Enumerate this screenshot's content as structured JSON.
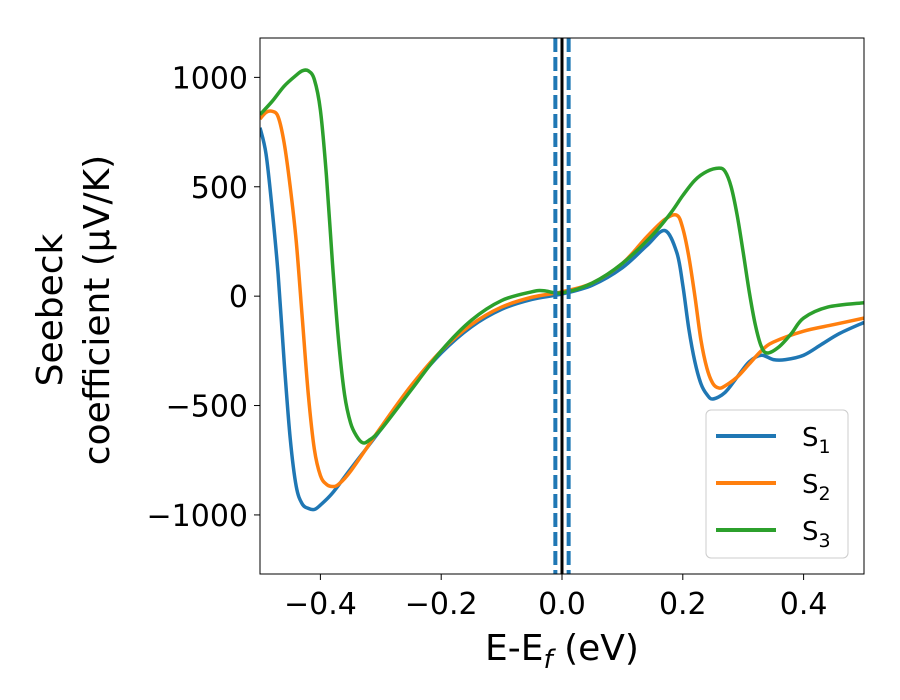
{
  "chart_data": {
    "type": "line",
    "xlabel": "E-E_f (eV)",
    "xlabel_parts": {
      "main": "E-E",
      "sub": "f",
      "tail": " (eV)"
    },
    "ylabel_line1": "Seebeck",
    "ylabel_line2": "coefficient  (μV/K)",
    "xlim": [
      -0.5,
      0.5
    ],
    "ylim": [
      -1270,
      1180
    ],
    "xticks": [
      -0.4,
      -0.2,
      0.0,
      0.2,
      0.4
    ],
    "xtick_labels": [
      "−0.4",
      "−0.2",
      "0.0",
      "0.2",
      "0.4"
    ],
    "yticks": [
      1000,
      500,
      0,
      -500,
      -1000
    ],
    "ytick_labels": [
      "1000",
      "500",
      "0",
      "−500",
      "−1000"
    ],
    "grid": false,
    "legend_position": "bottom-right",
    "vlines": [
      {
        "x": 0.0,
        "color": "#000000",
        "style": "solid"
      },
      {
        "x": -0.011,
        "color": "#1f77b4",
        "style": "dashed"
      },
      {
        "x": 0.011,
        "color": "#1f77b4",
        "style": "dashed"
      }
    ],
    "series": [
      {
        "name": "S1",
        "label_main": "S",
        "label_sub": "1",
        "color": "#1f77b4",
        "x": [
          -0.5,
          -0.49,
          -0.48,
          -0.47,
          -0.46,
          -0.45,
          -0.44,
          -0.43,
          -0.42,
          -0.41,
          -0.4,
          -0.38,
          -0.35,
          -0.3,
          -0.25,
          -0.2,
          -0.15,
          -0.1,
          -0.05,
          0.0,
          0.05,
          0.1,
          0.14,
          0.17,
          0.19,
          0.2,
          0.21,
          0.22,
          0.23,
          0.24,
          0.25,
          0.27,
          0.29,
          0.31,
          0.33,
          0.35,
          0.37,
          0.4,
          0.43,
          0.46,
          0.5
        ],
        "y": [
          770,
          650,
          400,
          100,
          -300,
          -650,
          -870,
          -950,
          -970,
          -975,
          -955,
          -900,
          -790,
          -610,
          -420,
          -260,
          -140,
          -60,
          -15,
          10,
          50,
          130,
          230,
          300,
          200,
          50,
          -150,
          -300,
          -400,
          -450,
          -470,
          -440,
          -370,
          -300,
          -270,
          -290,
          -290,
          -270,
          -220,
          -170,
          -120
        ]
      },
      {
        "name": "S2",
        "label_main": "S",
        "label_sub": "2",
        "color": "#ff7f0e",
        "x": [
          -0.5,
          -0.49,
          -0.48,
          -0.47,
          -0.46,
          -0.45,
          -0.44,
          -0.43,
          -0.42,
          -0.41,
          -0.4,
          -0.39,
          -0.38,
          -0.37,
          -0.35,
          -0.3,
          -0.25,
          -0.2,
          -0.15,
          -0.1,
          -0.05,
          0.0,
          0.05,
          0.1,
          0.14,
          0.17,
          0.19,
          0.2,
          0.21,
          0.22,
          0.23,
          0.24,
          0.25,
          0.26,
          0.27,
          0.29,
          0.31,
          0.33,
          0.35,
          0.4,
          0.45,
          0.5
        ],
        "y": [
          810,
          840,
          845,
          820,
          700,
          500,
          250,
          -100,
          -450,
          -700,
          -820,
          -860,
          -870,
          -860,
          -800,
          -600,
          -410,
          -250,
          -130,
          -50,
          -5,
          20,
          60,
          150,
          270,
          350,
          370,
          310,
          180,
          0,
          -200,
          -330,
          -400,
          -420,
          -410,
          -370,
          -310,
          -250,
          -210,
          -160,
          -130,
          -100
        ]
      },
      {
        "name": "S3",
        "label_main": "S",
        "label_sub": "3",
        "color": "#2ca02c",
        "x": [
          -0.5,
          -0.48,
          -0.46,
          -0.44,
          -0.43,
          -0.42,
          -0.41,
          -0.4,
          -0.39,
          -0.38,
          -0.37,
          -0.36,
          -0.35,
          -0.34,
          -0.33,
          -0.32,
          -0.3,
          -0.25,
          -0.2,
          -0.15,
          -0.1,
          -0.05,
          -0.03,
          0.0,
          0.05,
          0.1,
          0.15,
          0.18,
          0.2,
          0.22,
          0.24,
          0.26,
          0.27,
          0.28,
          0.29,
          0.3,
          0.31,
          0.32,
          0.33,
          0.34,
          0.36,
          0.38,
          0.4,
          0.44,
          0.5
        ],
        "y": [
          830,
          890,
          960,
          1010,
          1030,
          1030,
          990,
          850,
          550,
          150,
          -200,
          -450,
          -580,
          -640,
          -670,
          -660,
          -610,
          -430,
          -250,
          -110,
          -20,
          20,
          25,
          15,
          60,
          150,
          280,
          380,
          460,
          530,
          570,
          585,
          570,
          500,
          370,
          200,
          20,
          -130,
          -230,
          -260,
          -230,
          -170,
          -100,
          -50,
          -30
        ]
      }
    ]
  }
}
